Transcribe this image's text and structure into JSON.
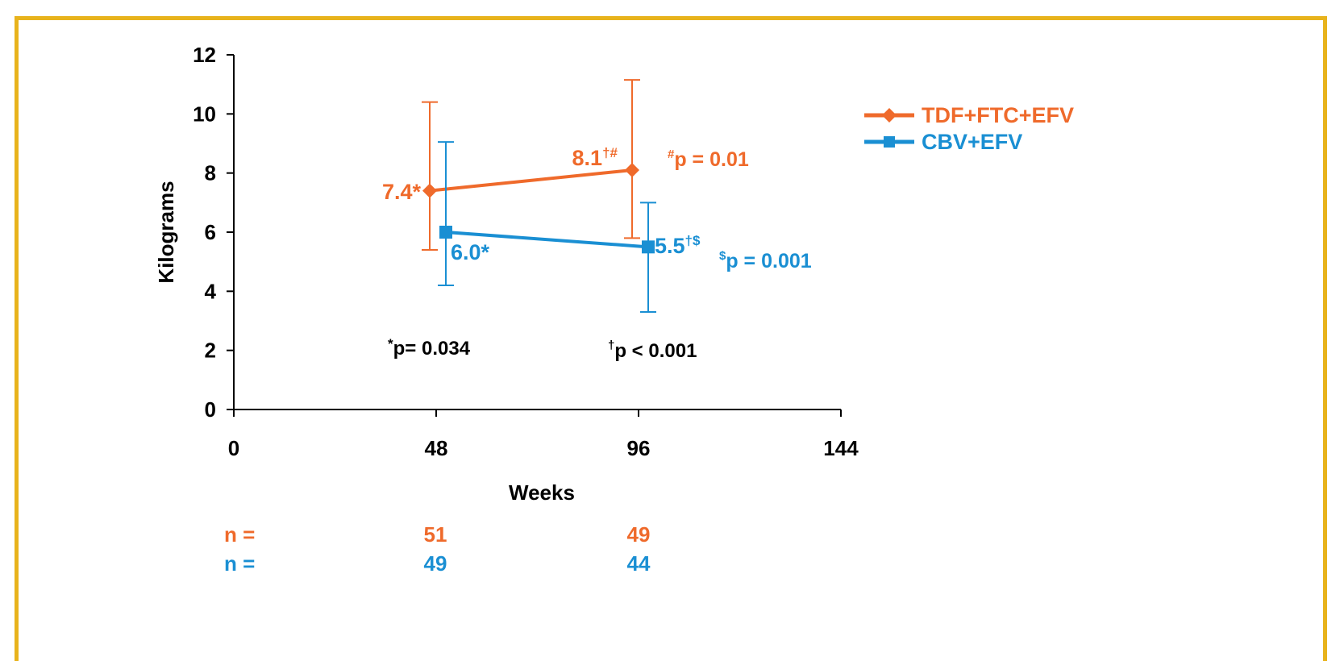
{
  "chart_data": {
    "type": "line",
    "title": "",
    "xlabel": "Weeks",
    "ylabel": "Kilograms",
    "xlim": [
      0,
      144
    ],
    "ylim": [
      0,
      12
    ],
    "xticks": [
      "0",
      "48",
      "96",
      "144"
    ],
    "yticks": [
      "0",
      "2",
      "4",
      "6",
      "8",
      "10",
      "12"
    ],
    "grid": false,
    "legend_position": "top-right",
    "series": [
      {
        "name": "TDF+FTC+EFV",
        "color": "#ef6a2b",
        "marker": "diamond",
        "points": [
          {
            "x": 48,
            "y": 7.4,
            "err_low": 5.4,
            "err_high": 10.4,
            "label": "7.4*"
          },
          {
            "x": 96,
            "y": 8.1,
            "err_low": 5.8,
            "err_high": 11.15,
            "label": "8.1",
            "label_sup": "†#"
          }
        ],
        "n_values": [
          "51",
          "49"
        ]
      },
      {
        "name": "CBV+EFV",
        "color": "#1a8fd3",
        "marker": "square",
        "points": [
          {
            "x": 48,
            "y": 6.0,
            "err_low": 4.2,
            "err_high": 9.05,
            "label": "6.0*"
          },
          {
            "x": 96,
            "y": 5.5,
            "err_low": 3.3,
            "err_high": 7.0,
            "label": "5.5",
            "label_sup": "†$"
          }
        ],
        "n_values": [
          "49",
          "44"
        ]
      }
    ],
    "annotations": {
      "p_orange": {
        "sup": "#",
        "text": "p = 0.01"
      },
      "p_blue": {
        "sup": "$",
        "text": "p = 0.001"
      },
      "p_48": {
        "sup": "*",
        "text": "p= 0.034"
      },
      "p_96": {
        "sup": "†",
        "text": "p < 0.001"
      }
    },
    "n_label": "n ="
  }
}
